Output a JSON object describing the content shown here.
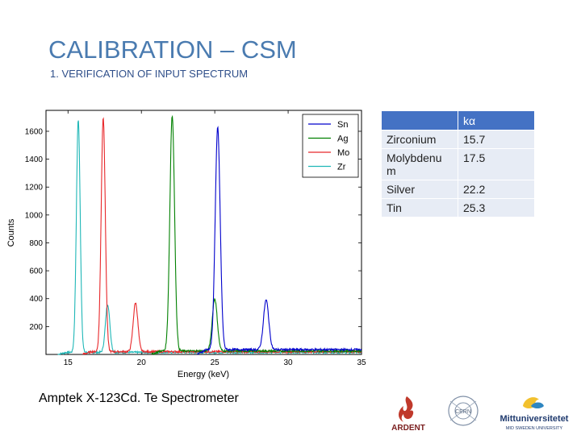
{
  "slide": {
    "title": "CALIBRATION – CSM",
    "subtitle": "1. VERIFICATION OF INPUT SPECTRUM",
    "caption": "Amptek X-123Cd. Te Spectrometer"
  },
  "table": {
    "header": [
      "",
      "kα"
    ],
    "rows": [
      {
        "element": "Zirconium",
        "value": "15.7"
      },
      {
        "element": "Molybdenu m",
        "value": "17.5"
      },
      {
        "element": "Silver",
        "value": "22.2"
      },
      {
        "element": "Tin",
        "value": "25.3"
      }
    ]
  },
  "logos": {
    "ardent": "ARDENT",
    "cern": "CERN",
    "miun": "Mittuniversitetet",
    "miun_sub": "MID SWEDEN UNIVERSITY"
  },
  "colors": {
    "Sn": "#0000cc",
    "Ag": "#008000",
    "Mo": "#e8272a",
    "Zr": "#1fb7b7",
    "title": "#4a7bb0",
    "header_bg": "#4472c4"
  },
  "chart_data": {
    "type": "line",
    "xlabel": "Energy (keV)",
    "ylabel": "Counts",
    "xlim": [
      13.5,
      35
    ],
    "ylim": [
      0,
      1750
    ],
    "xticks": [
      15,
      20,
      25,
      30,
      35
    ],
    "yticks": [
      200,
      400,
      600,
      800,
      1000,
      1200,
      1400,
      1600
    ],
    "legend_position": "top-right",
    "series": [
      {
        "name": "Sn",
        "baseline": 35,
        "peaks": [
          {
            "x": 25.2,
            "y": 1590,
            "w": 0.17
          },
          {
            "x": 28.5,
            "y": 355,
            "w": 0.18
          }
        ]
      },
      {
        "name": "Ag",
        "baseline": 25,
        "peaks": [
          {
            "x": 22.1,
            "y": 1690,
            "w": 0.16
          },
          {
            "x": 25.0,
            "y": 375,
            "w": 0.17
          }
        ]
      },
      {
        "name": "Mo",
        "baseline": 20,
        "peaks": [
          {
            "x": 17.4,
            "y": 1680,
            "w": 0.14
          },
          {
            "x": 19.6,
            "y": 350,
            "w": 0.16
          }
        ]
      },
      {
        "name": "Zr",
        "baseline": 15,
        "peaks": [
          {
            "x": 15.7,
            "y": 1670,
            "w": 0.13
          },
          {
            "x": 17.7,
            "y": 345,
            "w": 0.15
          }
        ]
      }
    ]
  }
}
